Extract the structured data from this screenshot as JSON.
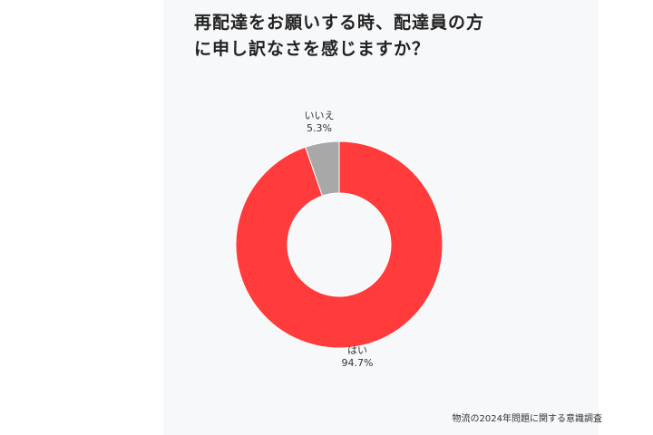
{
  "title": "再配達をお願いする時、配達員の方に申し訳なさを感じますか？",
  "source": "物流の2024年問題に関する意識調査",
  "chart_data": {
    "type": "pie",
    "variant": "donut",
    "title": "再配達をお願いする時、配達員の方に申し訳なさを感じますか？",
    "slices": [
      {
        "label": "はい",
        "value": 94.7,
        "value_label": "94.7%",
        "color": "#ff3b3b"
      },
      {
        "label": "いいえ",
        "value": 5.3,
        "value_label": "5.3%",
        "color": "#a8a8a8"
      }
    ],
    "start_angle_deg": 0,
    "direction": "clockwise"
  }
}
